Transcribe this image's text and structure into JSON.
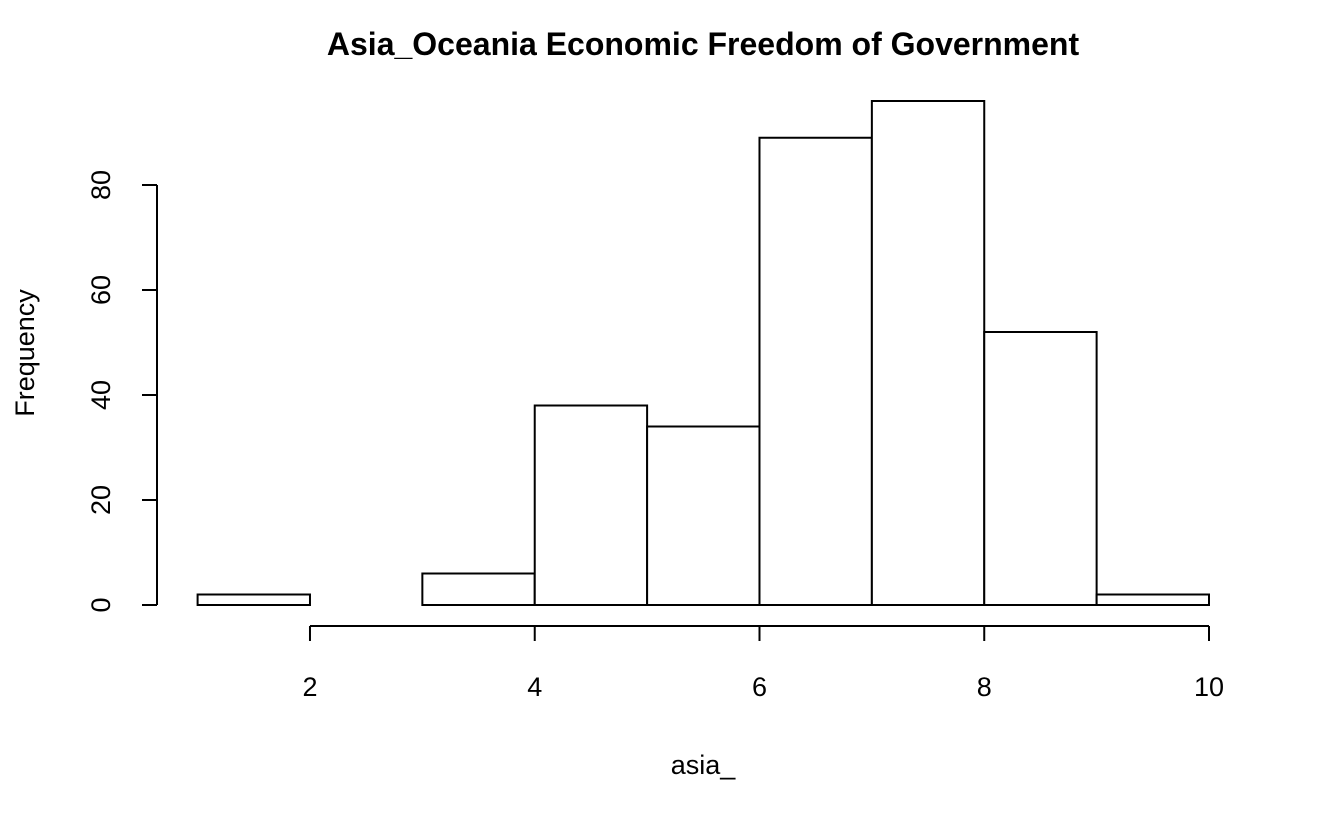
{
  "chart_data": {
    "type": "histogram",
    "title": "Asia_Oceania Economic Freedom of Government",
    "x_label": "asia_",
    "y_label": "Frequency",
    "bins": [
      1,
      2,
      3,
      4,
      5,
      6,
      7,
      8,
      9,
      10
    ],
    "values": [
      2,
      0,
      6,
      38,
      34,
      89,
      96,
      52,
      2
    ],
    "color": "#ffffff",
    "xlim": [
      1,
      10
    ],
    "ylim": [
      0,
      96
    ],
    "xticks": [
      2,
      4,
      6,
      8,
      10
    ],
    "yticks": [
      0,
      20,
      40,
      60,
      80
    ]
  }
}
